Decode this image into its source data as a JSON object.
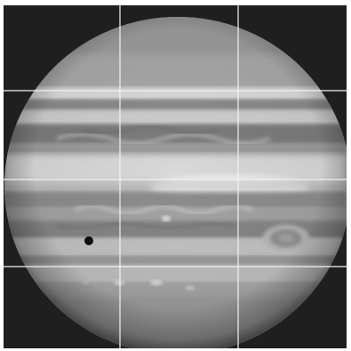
{
  "image": {
    "subject": "planet-jupiter-grayscale",
    "overlay": "grid-3x3",
    "colors": {
      "background": "#1f1f1f",
      "grid_line": "#f2f2f2",
      "planet_light": "#e6e6e6",
      "planet_mid": "#a8a8a8",
      "planet_dark": "#6a6a6a",
      "moon_shadow": "#0e0e0e"
    }
  }
}
